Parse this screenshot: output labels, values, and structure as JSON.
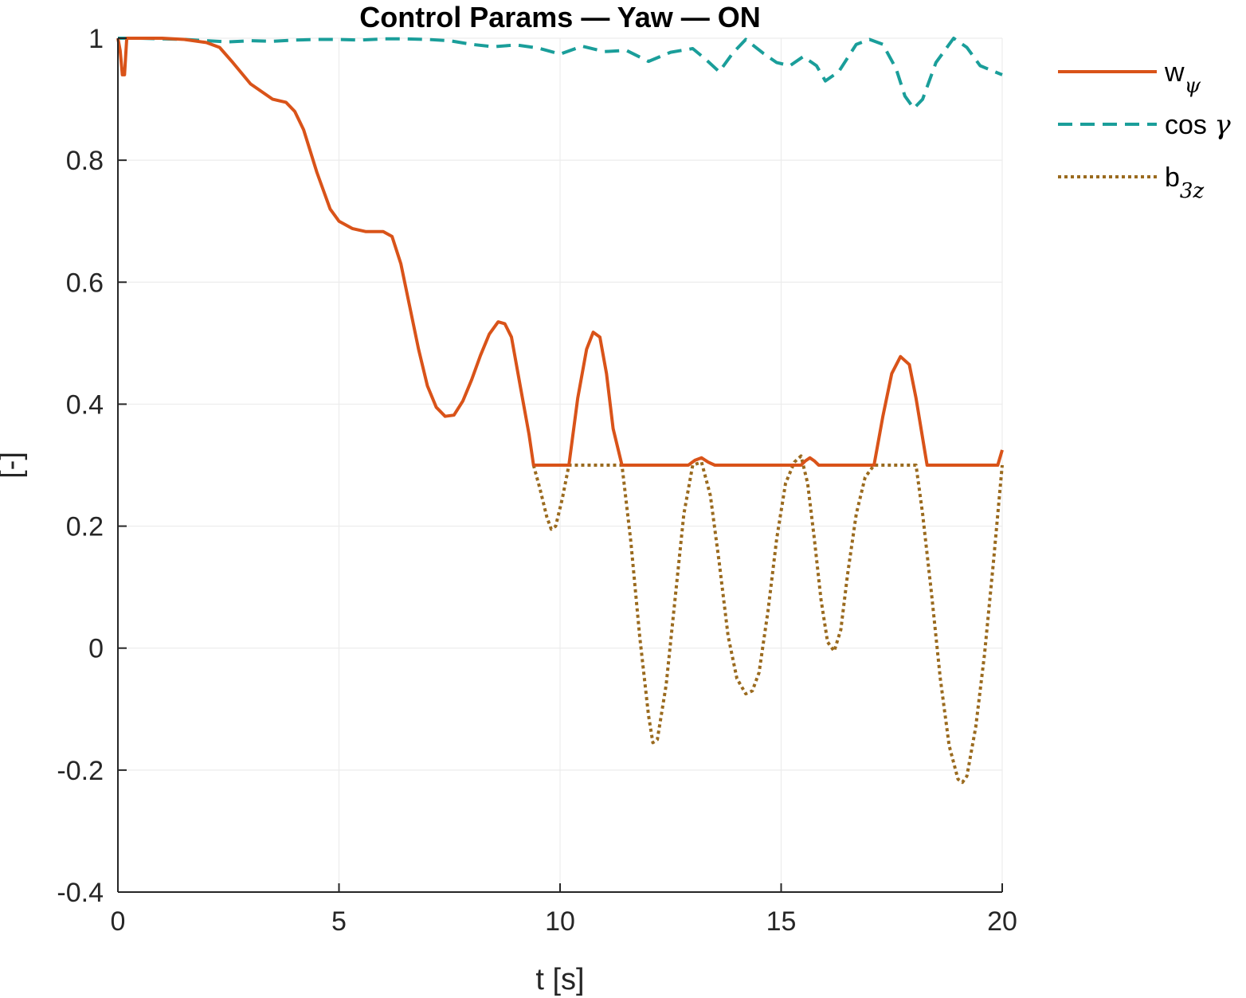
{
  "chart_data": {
    "type": "line",
    "title": "Control Params — Yaw — ON",
    "xlabel": "t [s]",
    "ylabel": "[-]",
    "xlim": [
      0,
      20
    ],
    "ylim": [
      -0.4,
      1
    ],
    "xticks": [
      0,
      5,
      10,
      15,
      20
    ],
    "xtick_labels": [
      "0",
      "5",
      "10",
      "15",
      "20"
    ],
    "yticks": [
      -0.4,
      -0.2,
      0,
      0.2,
      0.4,
      0.6,
      0.8,
      1
    ],
    "ytick_labels": [
      "-0.4",
      "-0.2",
      "0",
      "0.2",
      "0.4",
      "0.6",
      "0.8",
      "1"
    ],
    "grid": true,
    "legend_position": "outside-top-right",
    "series": [
      {
        "key": "w_psi",
        "label_main": "w",
        "label_sub": "ψ",
        "style": "solid",
        "color": "#D95319",
        "x": [
          0,
          0.05,
          0.1,
          0.15,
          0.2,
          0.3,
          0.5,
          1.0,
          1.5,
          2.0,
          2.3,
          2.6,
          3.0,
          3.5,
          3.8,
          4.0,
          4.2,
          4.5,
          4.8,
          5.0,
          5.3,
          5.6,
          6.0,
          6.2,
          6.4,
          6.6,
          6.8,
          7.0,
          7.2,
          7.4,
          7.6,
          7.8,
          8.0,
          8.2,
          8.4,
          8.6,
          8.75,
          8.9,
          9.1,
          9.3,
          9.4,
          9.6,
          9.8,
          10.0,
          10.2,
          10.4,
          10.6,
          10.75,
          10.9,
          11.05,
          11.2,
          11.4,
          11.6,
          12.0,
          12.5,
          12.9,
          13.05,
          13.2,
          13.35,
          13.5,
          14.0,
          14.5,
          15.0,
          15.45,
          15.55,
          15.65,
          15.75,
          15.85,
          16.0,
          16.5,
          17.0,
          17.1,
          17.3,
          17.5,
          17.7,
          17.9,
          18.05,
          18.3,
          18.6,
          19.0,
          19.5,
          19.9,
          20.0
        ],
        "y": [
          1.0,
          0.98,
          0.94,
          0.94,
          1.0,
          1.0,
          1.0,
          1.0,
          0.998,
          0.993,
          0.985,
          0.96,
          0.925,
          0.9,
          0.895,
          0.88,
          0.85,
          0.78,
          0.72,
          0.7,
          0.688,
          0.683,
          0.683,
          0.675,
          0.63,
          0.56,
          0.49,
          0.43,
          0.395,
          0.38,
          0.382,
          0.405,
          0.44,
          0.48,
          0.515,
          0.535,
          0.532,
          0.51,
          0.43,
          0.35,
          0.3,
          0.3,
          0.3,
          0.3,
          0.3,
          0.41,
          0.49,
          0.518,
          0.51,
          0.45,
          0.36,
          0.3,
          0.3,
          0.3,
          0.3,
          0.3,
          0.308,
          0.312,
          0.305,
          0.3,
          0.3,
          0.3,
          0.3,
          0.3,
          0.307,
          0.312,
          0.307,
          0.3,
          0.3,
          0.3,
          0.3,
          0.3,
          0.38,
          0.45,
          0.478,
          0.465,
          0.41,
          0.3,
          0.3,
          0.3,
          0.3,
          0.3,
          0.325
        ]
      },
      {
        "key": "cos_gamma",
        "label_main": "cos ",
        "label_sub": "γ",
        "style": "dashed",
        "color": "#1A9E9A",
        "x": [
          0,
          0.5,
          1.0,
          1.5,
          2.0,
          2.5,
          3.0,
          3.5,
          4.0,
          4.5,
          5.0,
          5.5,
          6.0,
          6.5,
          7.0,
          7.5,
          8.0,
          8.5,
          9.0,
          9.5,
          10.0,
          10.5,
          11.0,
          11.5,
          12.0,
          12.5,
          13.0,
          13.3,
          13.6,
          13.9,
          14.2,
          14.6,
          14.9,
          15.2,
          15.5,
          15.8,
          16.0,
          16.3,
          16.7,
          17.0,
          17.3,
          17.6,
          17.8,
          18.0,
          18.2,
          18.5,
          18.9,
          19.2,
          19.5,
          20.0
        ],
        "y": [
          1.0,
          1.0,
          0.999,
          0.998,
          0.996,
          0.994,
          0.996,
          0.995,
          0.997,
          0.998,
          0.998,
          0.997,
          0.999,
          0.999,
          0.998,
          0.996,
          0.99,
          0.986,
          0.989,
          0.984,
          0.974,
          0.987,
          0.978,
          0.98,
          0.962,
          0.977,
          0.983,
          0.965,
          0.945,
          0.975,
          0.998,
          0.975,
          0.96,
          0.955,
          0.97,
          0.955,
          0.93,
          0.945,
          0.99,
          0.998,
          0.99,
          0.95,
          0.905,
          0.885,
          0.9,
          0.96,
          1.0,
          0.985,
          0.955,
          0.94
        ]
      },
      {
        "key": "b_3z",
        "label_main": "b",
        "label_sub": "3z",
        "style": "dotted",
        "color": "#9A6A1E",
        "x": [
          9.4,
          9.55,
          9.7,
          9.8,
          9.9,
          10.05,
          10.2,
          11.4,
          11.6,
          11.8,
          12.0,
          12.1,
          12.2,
          12.4,
          12.6,
          12.8,
          13.0,
          13.2,
          13.4,
          13.6,
          13.8,
          14.0,
          14.2,
          14.35,
          14.5,
          14.7,
          14.9,
          15.1,
          15.3,
          15.45,
          15.6,
          15.75,
          15.9,
          16.05,
          16.2,
          16.35,
          16.5,
          16.7,
          16.9,
          17.1,
          18.05,
          18.2,
          18.4,
          18.6,
          18.8,
          19.0,
          19.1,
          19.2,
          19.4,
          19.6,
          19.8,
          20.0
        ],
        "y": [
          0.3,
          0.26,
          0.215,
          0.195,
          0.2,
          0.245,
          0.3,
          0.3,
          0.175,
          0.02,
          -0.11,
          -0.155,
          -0.15,
          -0.06,
          0.08,
          0.22,
          0.3,
          0.305,
          0.25,
          0.14,
          0.02,
          -0.05,
          -0.075,
          -0.07,
          -0.04,
          0.06,
          0.18,
          0.27,
          0.305,
          0.315,
          0.27,
          0.18,
          0.08,
          0.01,
          -0.005,
          0.03,
          0.12,
          0.22,
          0.28,
          0.3,
          0.3,
          0.22,
          0.09,
          -0.05,
          -0.16,
          -0.215,
          -0.22,
          -0.21,
          -0.13,
          -0.01,
          0.14,
          0.3
        ]
      }
    ]
  }
}
